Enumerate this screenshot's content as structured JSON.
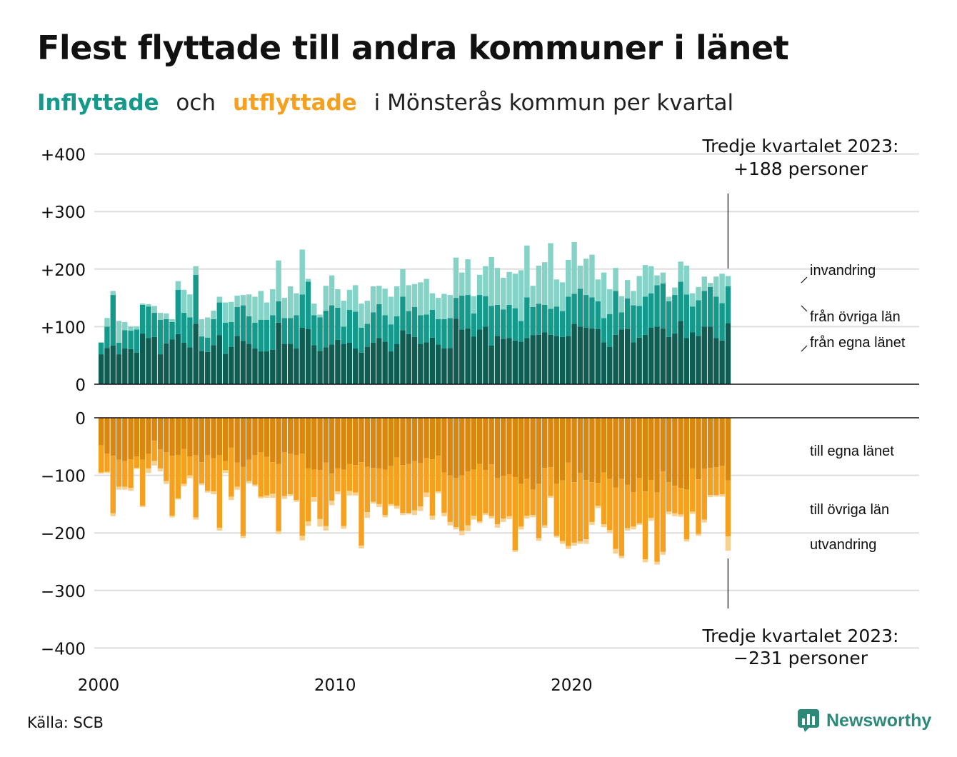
{
  "title": "Flest flyttade till andra kommuner i länet",
  "subtitle": {
    "part1": "Inflyttade",
    "part2": "och",
    "part3": "utflyttade",
    "part4": "i Mönsterås kommun per kvartal"
  },
  "source": "Källa: SCB",
  "logo": {
    "name": "Newsworthy",
    "icon": "bar-chart-speech-bubble-icon"
  },
  "colors": {
    "in_egna": "#0e5c52",
    "in_ovriga": "#14998a",
    "in_invandring": "#85d2c6",
    "ut_egna": "#d9870f",
    "ut_ovriga": "#f5a11f",
    "ut_utvandring": "#f8d08f",
    "inflyttade": "#14998a",
    "utflyttade": "#f5a11f"
  },
  "chart_data": {
    "type": "bar",
    "stacked": true,
    "x_start": "2000 Q1",
    "x_end": "2023 Q3",
    "x_ticks": [
      "2000",
      "2010",
      "2020"
    ],
    "upper_panel": {
      "ylim": [
        0,
        400
      ],
      "y_ticks": [
        "0",
        "+100",
        "+200",
        "+300",
        "+400"
      ],
      "series_labels": [
        "från egna länet",
        "från övriga län",
        "invandring"
      ],
      "annotation": [
        "Tredje kvartalet 2023:",
        "+188 personer"
      ],
      "from_egna_lanet": [
        52,
        63,
        67,
        52,
        62,
        61,
        55,
        88,
        80,
        82,
        52,
        71,
        78,
        87,
        72,
        64,
        105,
        58,
        56,
        68,
        85,
        53,
        65,
        84,
        75,
        70,
        62,
        57,
        57,
        60,
        107,
        70,
        70,
        62,
        98,
        96,
        68,
        58,
        64,
        69,
        77,
        70,
        72,
        62,
        55,
        65,
        72,
        80,
        74,
        57,
        70,
        94,
        87,
        82,
        70,
        73,
        81,
        69,
        62,
        63,
        114,
        95,
        97,
        83,
        95,
        100,
        67,
        84,
        79,
        80,
        76,
        74,
        80,
        85,
        86,
        90,
        86,
        84,
        82,
        84,
        105,
        100,
        98,
        97,
        96,
        73,
        65,
        86,
        95,
        96,
        73,
        81,
        86,
        98,
        100,
        97,
        82,
        88,
        110,
        80,
        90,
        84,
        100,
        100,
        80,
        76,
        106
      ],
      "from_ovriga_lan": [
        20,
        37,
        88,
        20,
        32,
        32,
        40,
        50,
        55,
        42,
        60,
        42,
        30,
        77,
        52,
        52,
        85,
        25,
        25,
        45,
        57,
        54,
        43,
        50,
        62,
        48,
        45,
        55,
        55,
        60,
        37,
        45,
        45,
        58,
        58,
        82,
        52,
        58,
        64,
        68,
        56,
        30,
        57,
        64,
        43,
        40,
        53,
        59,
        46,
        47,
        48,
        58,
        40,
        52,
        50,
        48,
        48,
        44,
        51,
        52,
        36,
        59,
        58,
        40,
        60,
        53,
        69,
        54,
        51,
        58,
        56,
        36,
        71,
        49,
        54,
        48,
        45,
        51,
        45,
        68,
        52,
        66,
        57,
        54,
        48,
        42,
        57,
        76,
        30,
        53,
        64,
        55,
        66,
        60,
        72,
        78,
        62,
        67,
        68,
        76,
        45,
        62,
        62,
        69,
        72,
        65,
        64
      ],
      "invandring": [
        1,
        15,
        7,
        38,
        14,
        7,
        5,
        2,
        4,
        12,
        12,
        10,
        5,
        15,
        40,
        40,
        15,
        30,
        35,
        15,
        10,
        35,
        35,
        20,
        18,
        38,
        45,
        50,
        30,
        45,
        71,
        35,
        55,
        38,
        78,
        5,
        20,
        5,
        43,
        52,
        32,
        45,
        35,
        46,
        42,
        40,
        45,
        32,
        46,
        48,
        52,
        48,
        45,
        40,
        57,
        62,
        29,
        37,
        44,
        40,
        70,
        40,
        62,
        30,
        35,
        52,
        85,
        64,
        55,
        57,
        60,
        88,
        90,
        37,
        66,
        74,
        114,
        47,
        50,
        64,
        90,
        40,
        63,
        74,
        38,
        79,
        43,
        40,
        28,
        32,
        25,
        52,
        55,
        47,
        17,
        19,
        8,
        13,
        35,
        50,
        23,
        23,
        25,
        7,
        35,
        51,
        18
      ]
    },
    "lower_panel": {
      "ylim": [
        -400,
        0
      ],
      "y_ticks": [
        "0",
        "−100",
        "−200",
        "−300",
        "−400"
      ],
      "series_labels": [
        "till egna länet",
        "till övriga län",
        "utvandring"
      ],
      "annotation": [
        "Tredje kvartalet 2023:",
        "−231 personer"
      ],
      "till_egna_lanet": [
        -48,
        -62,
        -66,
        -73,
        -75,
        -72,
        -67,
        -73,
        -63,
        -40,
        -55,
        -60,
        -66,
        -65,
        -54,
        -67,
        -65,
        -77,
        -65,
        -70,
        -65,
        -75,
        -52,
        -78,
        -85,
        -73,
        -65,
        -60,
        -68,
        -77,
        -80,
        -60,
        -63,
        -65,
        -62,
        -88,
        -90,
        -91,
        -78,
        -97,
        -88,
        -90,
        -80,
        -82,
        -77,
        -85,
        -87,
        -88,
        -90,
        -84,
        -69,
        -82,
        -80,
        -75,
        -79,
        -70,
        -72,
        -66,
        -95,
        -100,
        -105,
        -100,
        -93,
        -90,
        -80,
        -91,
        -81,
        -105,
        -101,
        -98,
        -103,
        -115,
        -106,
        -125,
        -115,
        -87,
        -86,
        -115,
        -109,
        -78,
        -112,
        -96,
        -108,
        -112,
        -113,
        -95,
        -106,
        -121,
        -106,
        -116,
        -129,
        -105,
        -128,
        -108,
        -130,
        -93,
        -112,
        -118,
        -122,
        -125,
        -88,
        -107,
        -89,
        -87,
        -86,
        -84,
        -109
      ],
      "till_ovriga_lan": [
        -47,
        -32,
        -100,
        -47,
        -45,
        -50,
        -20,
        -80,
        -25,
        -35,
        -33,
        -50,
        -104,
        -75,
        -61,
        -33,
        -108,
        -37,
        -62,
        -58,
        -126,
        -16,
        -85,
        -42,
        -120,
        -37,
        -51,
        -77,
        -67,
        -55,
        -117,
        -76,
        -70,
        -78,
        -143,
        -92,
        -48,
        -85,
        -110,
        -47,
        -40,
        -98,
        -47,
        -48,
        -145,
        -79,
        -59,
        -62,
        -79,
        -66,
        -84,
        -83,
        -85,
        -86,
        -75,
        -60,
        -98,
        -62,
        -70,
        -81,
        -85,
        -96,
        -94,
        -80,
        -100,
        -75,
        -90,
        -80,
        -74,
        -73,
        -127,
        -74,
        -64,
        -44,
        -94,
        -100,
        -50,
        -90,
        -105,
        -145,
        -105,
        -119,
        -103,
        -69,
        -40,
        -90,
        -89,
        -107,
        -134,
        -76,
        -60,
        -78,
        -118,
        -66,
        -120,
        -140,
        -51,
        -48,
        -46,
        -86,
        -75,
        -95,
        -88,
        -47,
        -48,
        -49,
        -97
      ],
      "utvandring": [
        -2,
        -2,
        -5,
        -5,
        -5,
        -5,
        -2,
        -2,
        -8,
        -8,
        -5,
        -5,
        -3,
        -2,
        -4,
        -5,
        -4,
        -3,
        -3,
        -5,
        -5,
        -5,
        -6,
        -5,
        -4,
        -4,
        -3,
        -3,
        -4,
        -7,
        -5,
        -5,
        -3,
        -3,
        -8,
        -8,
        -8,
        -13,
        -8,
        -8,
        -5,
        -5,
        -8,
        -5,
        -5,
        -10,
        -3,
        -5,
        -4,
        -3,
        -5,
        -4,
        -3,
        -8,
        -8,
        -8,
        -7,
        -3,
        -6,
        -6,
        -4,
        -8,
        -10,
        -7,
        -3,
        -3,
        -4,
        -6,
        -6,
        -5,
        -3,
        -5,
        -5,
        -4,
        -5,
        -4,
        -3,
        -3,
        -5,
        -5,
        -5,
        -4,
        -8,
        -5,
        -4,
        -5,
        -5,
        -8,
        -4,
        -4,
        -5,
        -3,
        -5,
        -5,
        -5,
        -5,
        -5,
        -5,
        -4,
        -4,
        -4,
        -3,
        -5,
        -4,
        -3,
        -4,
        -25
      ]
    },
    "grid": true
  }
}
